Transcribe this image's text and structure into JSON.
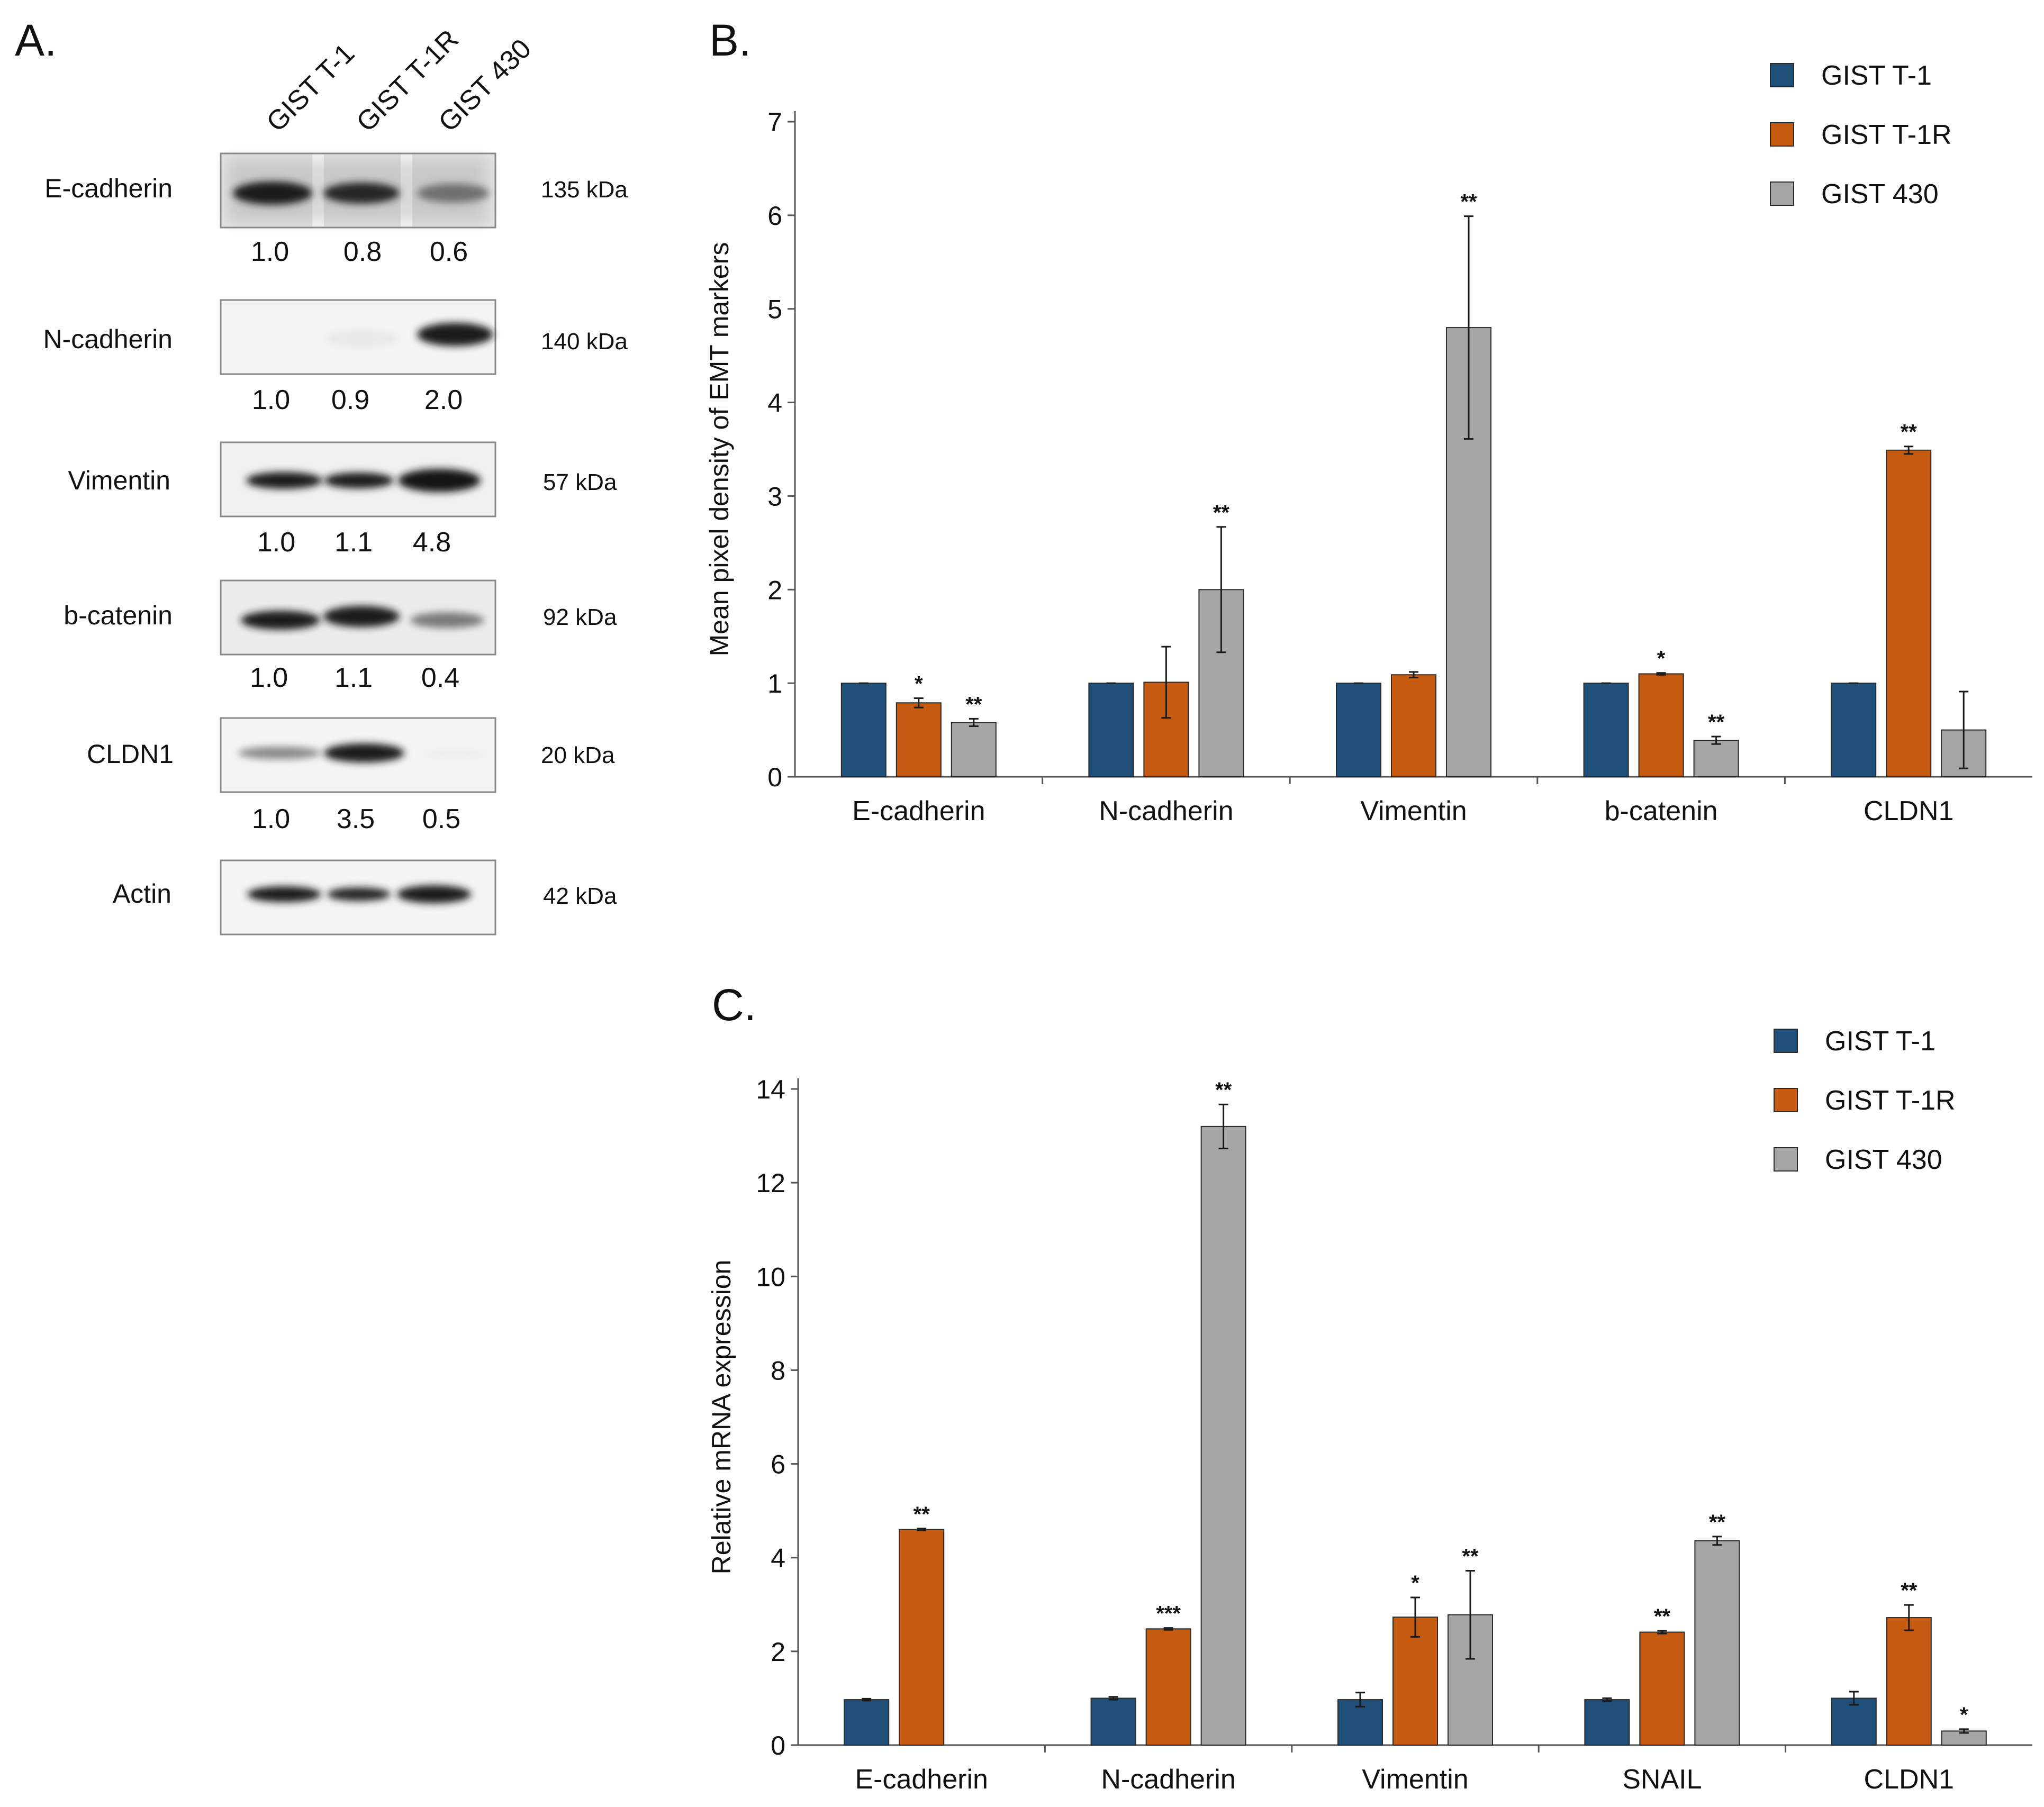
{
  "panel_a": {
    "label": "A.",
    "lanes": [
      "GIST T-1",
      "GIST T-1R",
      "GIST 430"
    ],
    "blots": [
      {
        "protein": "E-cadherin",
        "size": "135 kDa",
        "values": [
          "1.0",
          "0.8",
          "0.6"
        ]
      },
      {
        "protein": "N-cadherin",
        "size": "140 kDa",
        "values": [
          "1.0",
          "0.9",
          "2.0"
        ]
      },
      {
        "protein": "Vimentin",
        "size": "57 kDa",
        "values": [
          "1.0",
          "1.1",
          "4.8"
        ]
      },
      {
        "protein": "b-catenin",
        "size": "92 kDa",
        "values": [
          "1.0",
          "1.1",
          "0.4"
        ]
      },
      {
        "protein": "CLDN1",
        "size": "20 kDa",
        "values": [
          "1.0",
          "3.5",
          "0.5"
        ]
      },
      {
        "protein": "Actin",
        "size": "42 kDa",
        "values": []
      }
    ]
  },
  "chart_data": [
    {
      "panel": "B.",
      "type": "bar",
      "title": "",
      "xlabel": "",
      "ylabel": "Mean pixel density of EMT markers",
      "ylim": [
        0,
        7
      ],
      "yticks": [
        0,
        1,
        2,
        3,
        4,
        5,
        6,
        7
      ],
      "categories": [
        "E-cadherin",
        "N-cadherin",
        "Vimentin",
        "b-catenin",
        "CLDN1"
      ],
      "series": [
        {
          "name": "GIST T-1",
          "color": "#1f4e79",
          "values": [
            1.0,
            1.0,
            1.0,
            1.0,
            1.0
          ],
          "errors": [
            0.0,
            0.0,
            0.0,
            0.0,
            0.0
          ],
          "sig": [
            "",
            "",
            "",
            "",
            ""
          ]
        },
        {
          "name": "GIST T-1R",
          "color": "#c55a11",
          "values": [
            0.79,
            1.01,
            1.09,
            1.1,
            3.49
          ],
          "errors": [
            0.05,
            0.38,
            0.03,
            0.01,
            0.04
          ],
          "sig": [
            "*",
            "",
            "",
            "*",
            "**"
          ]
        },
        {
          "name": "GIST 430",
          "color": "#a6a6a6",
          "values": [
            0.58,
            2.0,
            4.8,
            0.39,
            0.5
          ],
          "errors": [
            0.04,
            0.67,
            1.19,
            0.04,
            0.41
          ],
          "sig": [
            "**",
            "**",
            "**",
            "**",
            ""
          ]
        }
      ],
      "legend": "top-right"
    },
    {
      "panel": "C.",
      "type": "bar",
      "title": "",
      "xlabel": "",
      "ylabel": "Relative mRNA expression",
      "ylim": [
        0,
        14
      ],
      "yticks": [
        0,
        2,
        4,
        6,
        8,
        10,
        12,
        14
      ],
      "categories": [
        "E-cadherin",
        "N-cadherin",
        "Vimentin",
        "SNAIL",
        "CLDN1"
      ],
      "series": [
        {
          "name": "GIST T-1",
          "color": "#1f4e79",
          "values": [
            0.97,
            1.0,
            0.97,
            0.97,
            1.0
          ],
          "errors": [
            0.02,
            0.03,
            0.15,
            0.03,
            0.14
          ],
          "sig": [
            "",
            "",
            "",
            "",
            ""
          ]
        },
        {
          "name": "GIST T-1R",
          "color": "#c55a11",
          "values": [
            4.6,
            2.48,
            2.73,
            2.41,
            2.72
          ],
          "errors": [
            0.02,
            0.02,
            0.42,
            0.03,
            0.27
          ],
          "sig": [
            "**",
            "***",
            "*",
            "**",
            "**"
          ]
        },
        {
          "name": "GIST 430",
          "color": "#a6a6a6",
          "values": [
            0.0,
            13.2,
            2.78,
            4.36,
            0.3
          ],
          "errors": [
            0.0,
            0.47,
            0.94,
            0.09,
            0.04
          ],
          "sig": [
            "",
            "**",
            "**",
            "**",
            "*"
          ]
        }
      ],
      "legend": "top-right"
    }
  ]
}
